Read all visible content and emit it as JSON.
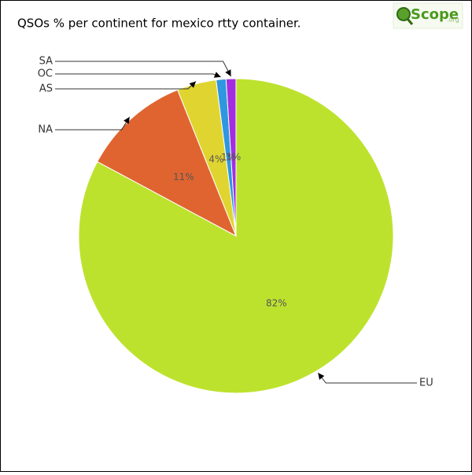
{
  "chart_data": {
    "type": "pie",
    "title": "QSOs % per continent for mexico rtty container.",
    "logo": {
      "text": "Scope",
      "suffix": ".org"
    },
    "categories": [
      "EU",
      "NA",
      "AS",
      "OC",
      "SA"
    ],
    "values": [
      82,
      11,
      4,
      1,
      1
    ],
    "value_labels": [
      "82%",
      "11%",
      "4%",
      "1%",
      "1%"
    ],
    "colors": [
      "#bde22e",
      "#e06430",
      "#e0d530",
      "#2e97e0",
      "#a22ee0"
    ]
  }
}
